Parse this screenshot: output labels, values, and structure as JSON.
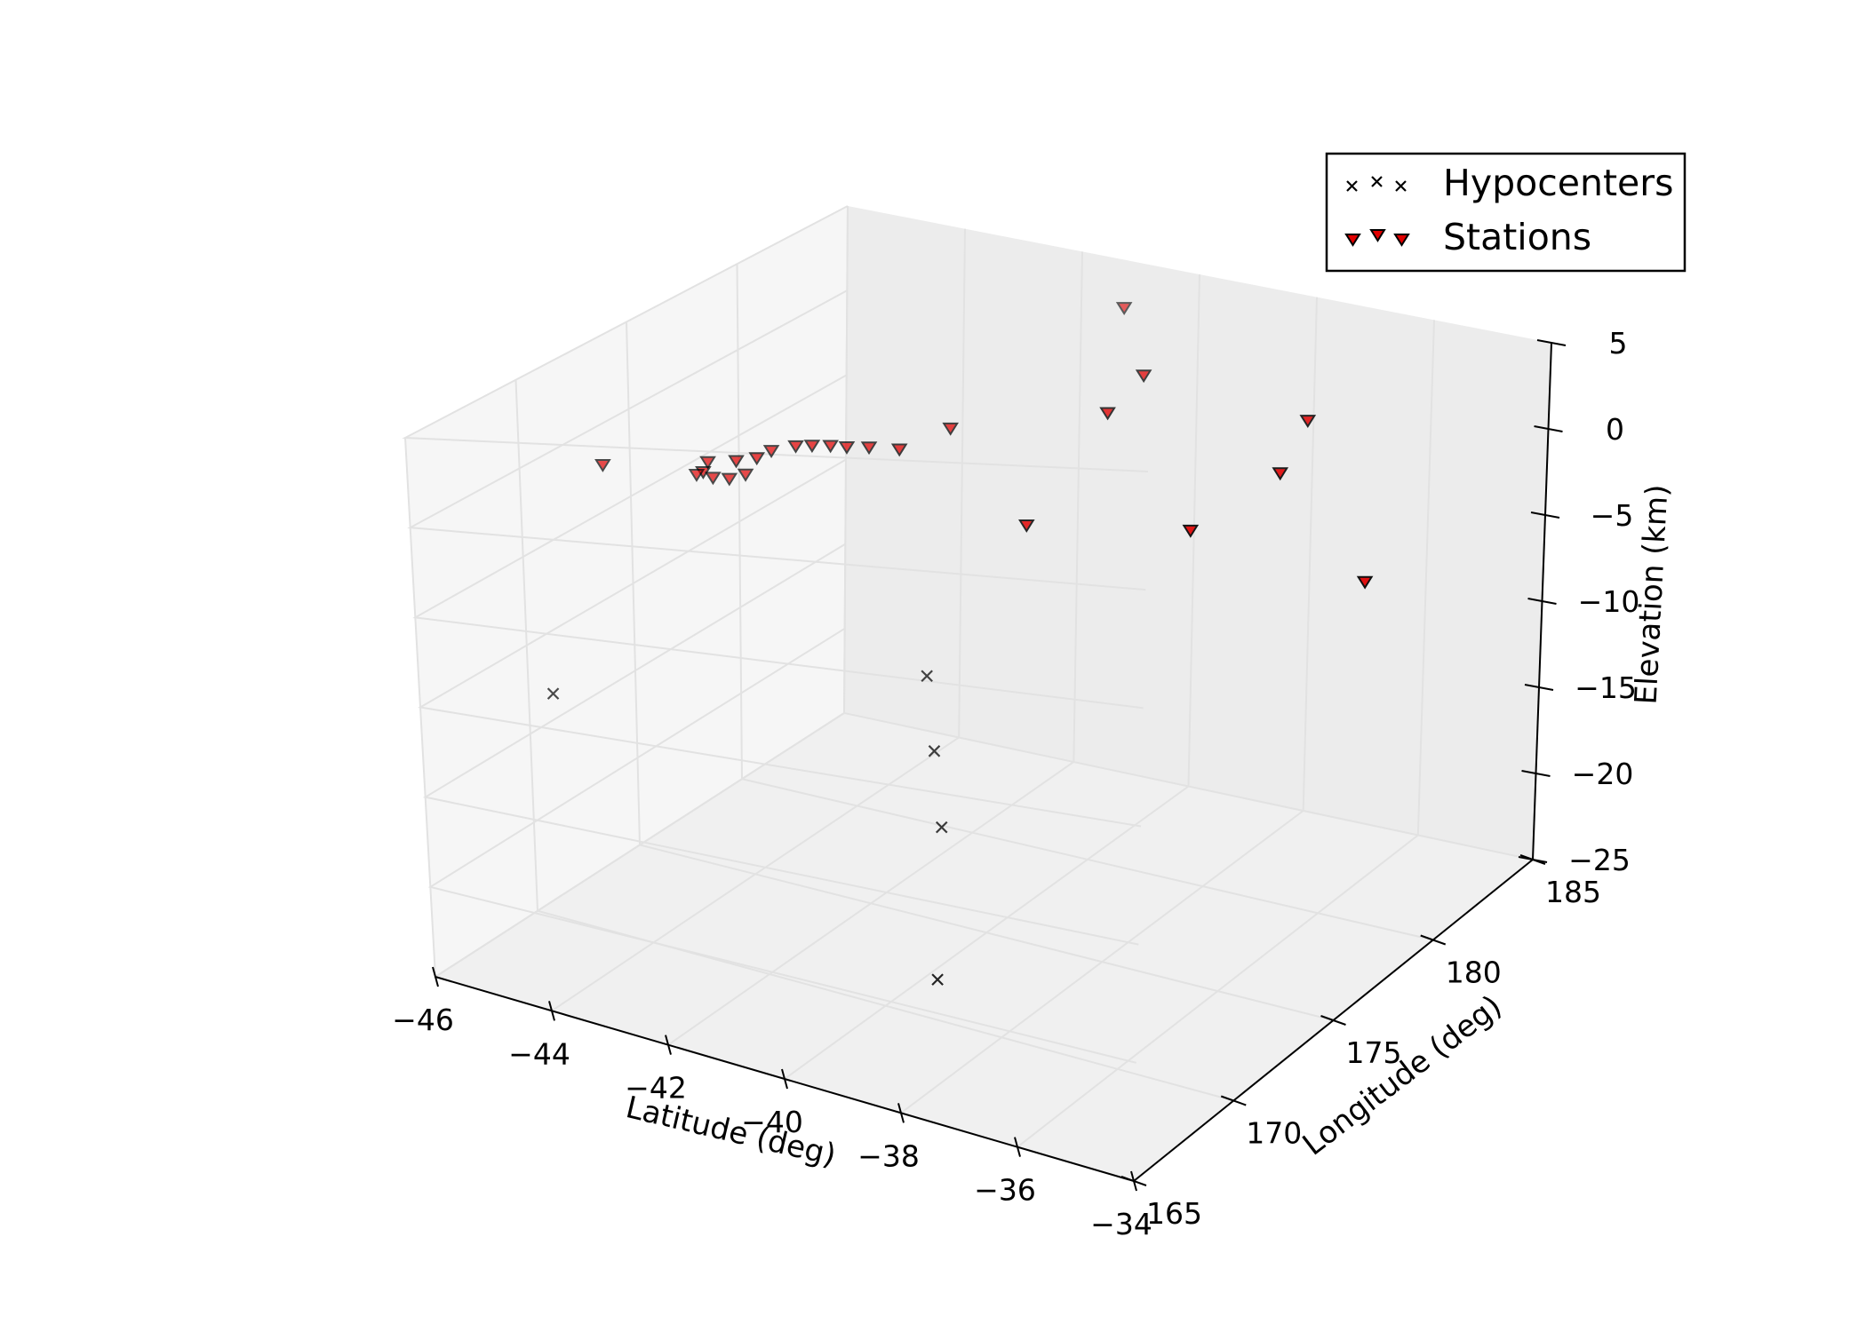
{
  "chart_data": {
    "type": "scatter",
    "projection": "3d",
    "title": "",
    "xlabel": "Latitude (deg)",
    "ylabel": "Longitude (deg)",
    "zlabel": "Elevation (km)",
    "xlim": [
      -46,
      -34
    ],
    "ylim": [
      165,
      185
    ],
    "zlim": [
      -25,
      5
    ],
    "x_ticks": [
      "−46",
      "−44",
      "−42",
      "−40",
      "−38",
      "−36",
      "−34"
    ],
    "y_ticks": [
      "165",
      "170",
      "175",
      "180",
      "185"
    ],
    "z_ticks": [
      "5",
      "0",
      "−5",
      "−10",
      "−15",
      "−20",
      "−25"
    ],
    "grid": true,
    "legend_position": "top-right",
    "colors": {
      "hypocenter": "#000000",
      "station_fill": "#e00000",
      "station_edge": "#000000",
      "pane_left": "#f6f6f6",
      "pane_floor": "#f0f0f0",
      "pane_back": "#ececec",
      "grid": "#e2e2e2"
    },
    "series": [
      {
        "name": "Hypocenters",
        "marker": "x",
        "points": [
          {
            "x": -45.4,
            "y": 169.5,
            "z": -12.0
          },
          {
            "x": -41.2,
            "y": 175.5,
            "z": -12.5
          },
          {
            "x": -40.9,
            "y": 175.0,
            "z": -16.0
          },
          {
            "x": -40.6,
            "y": 174.5,
            "z": -19.5
          },
          {
            "x": -39.8,
            "y": 172.0,
            "z": -25.0
          }
        ]
      },
      {
        "name": "Stations",
        "marker": "v",
        "points": [
          {
            "x": -44.8,
            "y": 170.5,
            "z": 0.3
          },
          {
            "x": -43.5,
            "y": 171.5,
            "z": -0.2
          },
          {
            "x": -43.9,
            "y": 172.3,
            "z": -1.0
          },
          {
            "x": -43.7,
            "y": 172.5,
            "z": -1.2
          },
          {
            "x": -43.5,
            "y": 172.7,
            "z": -1.3
          },
          {
            "x": -43.3,
            "y": 172.9,
            "z": -1.1
          },
          {
            "x": -43.6,
            "y": 172.0,
            "z": 0.0
          },
          {
            "x": -43.2,
            "y": 172.2,
            "z": 0.1
          },
          {
            "x": -43.0,
            "y": 172.6,
            "z": 0.1
          },
          {
            "x": -42.9,
            "y": 173.0,
            "z": 0.3
          },
          {
            "x": -42.6,
            "y": 173.3,
            "z": 0.5
          },
          {
            "x": -42.4,
            "y": 173.5,
            "z": 0.5
          },
          {
            "x": -42.2,
            "y": 173.8,
            "z": 0.4
          },
          {
            "x": -42.0,
            "y": 174.0,
            "z": 0.3
          },
          {
            "x": -41.7,
            "y": 174.2,
            "z": 0.3
          },
          {
            "x": -41.3,
            "y": 174.5,
            "z": 0.2
          },
          {
            "x": -40.8,
            "y": 175.5,
            "z": 1.0
          },
          {
            "x": -39.0,
            "y": 174.0,
            "z": -2.5
          },
          {
            "x": -38.7,
            "y": 177.0,
            "z": 2.0
          },
          {
            "x": -38.8,
            "y": 179.0,
            "z": 3.0
          },
          {
            "x": -36.5,
            "y": 174.7,
            "z": -2.0
          },
          {
            "x": -35.9,
            "y": 177.3,
            "z": 0.0
          },
          {
            "x": -36.0,
            "y": 178.9,
            "z": 2.0
          },
          {
            "x": -34.5,
            "y": 177.5,
            "z": -5.0
          },
          {
            "x": -40.2,
            "y": 182.0,
            "z": 4.5
          }
        ]
      }
    ]
  },
  "legend": {
    "entries": [
      "Hypocenters",
      "Stations"
    ]
  }
}
